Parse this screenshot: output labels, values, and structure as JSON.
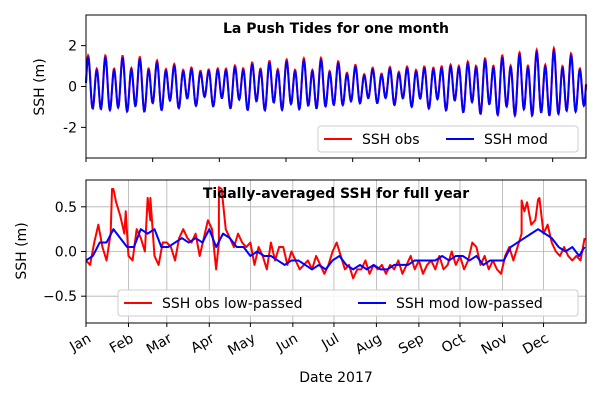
{
  "chart_data": [
    {
      "type": "line",
      "title": "La Push Tides for one month",
      "xlabel": "",
      "ylabel": "SSH (m)",
      "ylim": [
        -3.5,
        3.5
      ],
      "yticks": [
        -2,
        0,
        2
      ],
      "xlim": [
        0,
        30
      ],
      "grid": false,
      "legend_position": "lower-right",
      "tidal_envelope_days": [
        0,
        3,
        7,
        10,
        14,
        17,
        21,
        24,
        28,
        30
      ],
      "tidal_envelope_amplitude": [
        1.4,
        1.4,
        0.9,
        1.2,
        1.3,
        0.85,
        1.1,
        1.4,
        1.75,
        1.3
      ],
      "series": [
        {
          "name": "SSH obs",
          "color": "#ff0000",
          "offset": 0.05,
          "amplitude_scale": 1.05
        },
        {
          "name": "SSH mod",
          "color": "#0000ff",
          "offset": 0.0,
          "amplitude_scale": 1.0
        }
      ]
    },
    {
      "type": "line",
      "title": "Tidally-averaged SSH for full year",
      "xlabel": "Date 2017",
      "ylabel": "SSH (m)",
      "ylim": [
        -0.8,
        0.8
      ],
      "yticks": [
        -0.5,
        0.0,
        0.5
      ],
      "ytick_labels": [
        "−0.5",
        "0.0",
        "0.5"
      ],
      "xlim": [
        0,
        365
      ],
      "grid": true,
      "legend_position": "bottom",
      "categories": [
        "Jan",
        "Feb",
        "Mar",
        "Apr",
        "May",
        "Jun",
        "Jul",
        "Aug",
        "Sep",
        "Oct",
        "Nov",
        "Dec"
      ],
      "month_start_days": [
        0,
        31,
        59,
        90,
        120,
        151,
        181,
        212,
        243,
        273,
        304,
        334
      ],
      "series": [
        {
          "name": "SSH obs low-passed",
          "color": "#ff0000",
          "x": [
            0,
            3,
            6,
            9,
            12,
            15,
            18,
            20,
            22,
            25,
            28,
            31,
            34,
            37,
            40,
            43,
            45,
            47,
            50,
            53,
            56,
            59,
            62,
            65,
            68,
            71,
            74,
            77,
            80,
            83,
            86,
            89,
            92,
            95,
            97,
            99,
            102,
            105,
            108,
            111,
            114,
            117,
            120,
            123,
            126,
            129,
            132,
            135,
            138,
            141,
            144,
            147,
            150,
            153,
            156,
            159,
            162,
            165,
            168,
            171,
            174,
            177,
            180,
            183,
            186,
            189,
            192,
            195,
            198,
            201,
            204,
            207,
            210,
            213,
            216,
            219,
            222,
            225,
            228,
            231,
            234,
            237,
            240,
            243,
            246,
            249,
            252,
            255,
            258,
            261,
            264,
            267,
            270,
            273,
            276,
            279,
            282,
            285,
            288,
            291,
            294,
            297,
            300,
            303,
            306,
            309,
            312,
            315,
            318,
            320,
            322,
            325,
            328,
            331,
            334,
            337,
            340,
            343,
            346,
            349,
            352,
            355,
            358,
            361,
            364
          ],
          "y": [
            -0.1,
            -0.15,
            0.1,
            0.3,
            0.05,
            -0.1,
            0.2,
            0.7,
            0.55,
            0.4,
            0.2,
            -0.05,
            -0.1,
            0.25,
            0.15,
            0.0,
            0.6,
            0.35,
            -0.05,
            -0.15,
            0.1,
            0.1,
            0.05,
            -0.1,
            0.15,
            0.25,
            0.15,
            0.1,
            0.2,
            -0.05,
            0.15,
            0.35,
            0.25,
            -0.2,
            0.1,
            0.7,
            0.25,
            0.15,
            0.05,
            0.2,
            0.1,
            0.05,
            0.1,
            -0.15,
            0.05,
            -0.05,
            -0.2,
            0.1,
            -0.1,
            0.05,
            0.05,
            -0.15,
            0.0,
            -0.1,
            -0.2,
            -0.15,
            -0.1,
            -0.2,
            -0.05,
            -0.15,
            -0.25,
            -0.15,
            0.0,
            0.1,
            -0.05,
            -0.2,
            -0.15,
            -0.3,
            -0.2,
            -0.2,
            -0.1,
            -0.25,
            -0.15,
            -0.2,
            -0.15,
            -0.25,
            -0.15,
            -0.2,
            -0.1,
            -0.25,
            -0.15,
            -0.05,
            -0.2,
            -0.1,
            -0.25,
            -0.15,
            -0.1,
            -0.2,
            -0.05,
            -0.2,
            -0.15,
            0.0,
            -0.15,
            -0.05,
            -0.2,
            -0.1,
            0.1,
            0.05,
            -0.15,
            -0.05,
            -0.2,
            -0.1,
            -0.2,
            -0.25,
            -0.05,
            0.05,
            -0.1,
            0.05,
            0.2,
            0.45,
            0.55,
            0.3,
            0.35,
            0.6,
            0.2,
            0.3,
            0.1,
            0.0,
            -0.05,
            0.05,
            -0.05,
            -0.1,
            -0.05,
            -0.1,
            0.15
          ],
          "peaks": [
            [
              19,
              0.7
            ],
            [
              29,
              0.45
            ],
            [
              47,
              0.6
            ],
            [
              97,
              0.72
            ],
            [
              318,
              0.57
            ],
            [
              330,
              0.58
            ]
          ]
        },
        {
          "name": "SSH mod low-passed",
          "color": "#0000ff",
          "x": [
            0,
            5,
            10,
            15,
            20,
            25,
            30,
            35,
            40,
            45,
            50,
            55,
            60,
            65,
            70,
            75,
            80,
            85,
            90,
            95,
            100,
            105,
            110,
            115,
            120,
            125,
            130,
            135,
            140,
            145,
            150,
            155,
            160,
            165,
            170,
            175,
            180,
            185,
            190,
            195,
            200,
            205,
            210,
            215,
            220,
            225,
            230,
            235,
            240,
            245,
            250,
            255,
            260,
            265,
            270,
            275,
            280,
            285,
            290,
            295,
            300,
            305,
            310,
            315,
            320,
            325,
            330,
            335,
            340,
            345,
            350,
            355,
            360,
            364
          ],
          "y": [
            -0.1,
            -0.05,
            0.1,
            0.1,
            0.25,
            0.15,
            0.05,
            0.05,
            0.25,
            0.2,
            0.25,
            0.05,
            0.05,
            0.1,
            0.15,
            0.1,
            0.15,
            0.1,
            0.25,
            0.05,
            0.2,
            0.15,
            0.05,
            0.05,
            -0.05,
            0.0,
            -0.05,
            -0.05,
            -0.1,
            -0.15,
            -0.1,
            -0.1,
            -0.15,
            -0.2,
            -0.15,
            -0.2,
            -0.1,
            -0.05,
            -0.15,
            -0.2,
            -0.15,
            -0.2,
            -0.15,
            -0.2,
            -0.2,
            -0.15,
            -0.15,
            -0.15,
            -0.1,
            -0.1,
            -0.1,
            -0.1,
            -0.05,
            -0.1,
            -0.05,
            -0.05,
            -0.1,
            -0.05,
            -0.15,
            -0.1,
            -0.1,
            -0.1,
            0.05,
            0.1,
            0.15,
            0.2,
            0.25,
            0.2,
            0.15,
            0.05,
            0.0,
            0.05,
            -0.05,
            0.05
          ]
        }
      ]
    }
  ]
}
